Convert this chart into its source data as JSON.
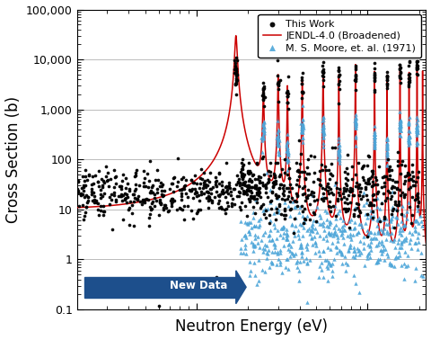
{
  "title": "",
  "xlabel": "Neutron Energy (eV)",
  "ylabel": "Cross Section (b)",
  "xlim": [
    2,
    220
  ],
  "ylim": [
    0.1,
    100000
  ],
  "legend_entries": [
    "This Work",
    "JENDL-4.0 (Broadened)",
    "M. S. Moore, et. al. (1971)"
  ],
  "arrow_text": "New Data",
  "arrow_color": "#1d4f8c",
  "background_color": "#ffffff",
  "grid_color": "#bbbbbb",
  "this_work_color": "#000000",
  "jendl_color": "#cc0000",
  "moore_color": "#4da6d9",
  "xlabel_fontsize": 12,
  "ylabel_fontsize": 12,
  "tick_labelsize": 9,
  "legend_fontsize": 8
}
